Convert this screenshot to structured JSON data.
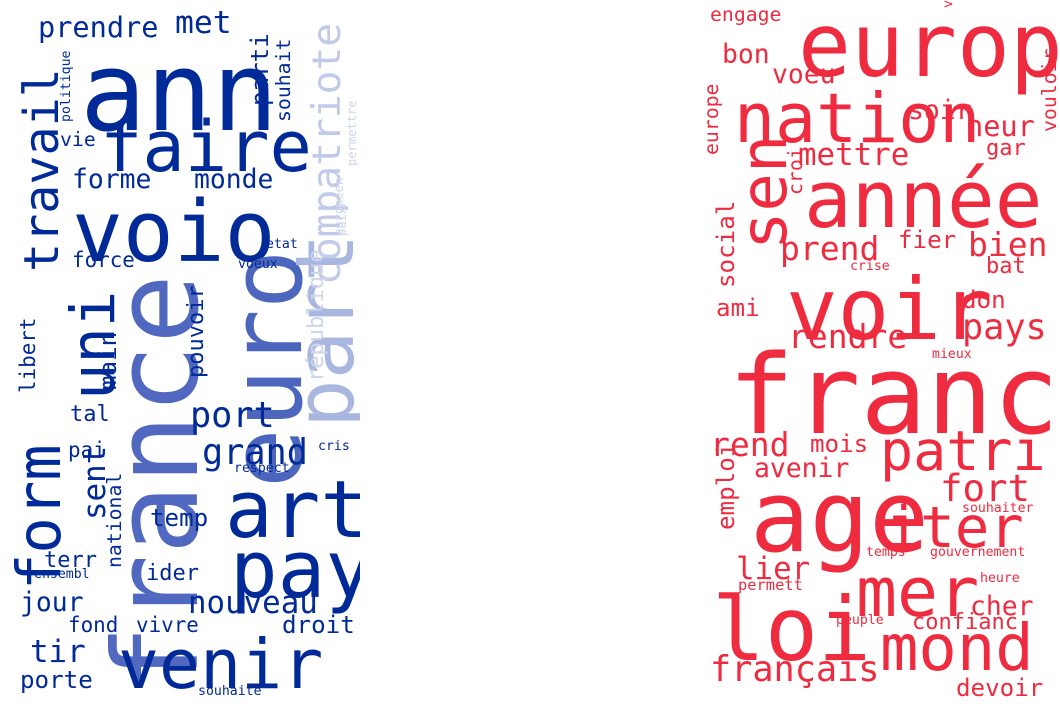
{
  "chart_data": [
    {
      "type": "wordcloud",
      "color_scale": [
        "#002a97",
        "#cdd5ec"
      ],
      "words": [
        {
          "text": "ann",
          "weight": 95,
          "color": "#002a97"
        },
        {
          "text": "faire",
          "weight": 64,
          "color": "#002a97"
        },
        {
          "text": "voio",
          "weight": 80,
          "color": "#002a97"
        },
        {
          "text": "france",
          "weight": 100,
          "color": "#5168c0"
        },
        {
          "text": "euro",
          "weight": 90,
          "color": "#4c66bd"
        },
        {
          "text": "part",
          "weight": 70,
          "color": "#a9b6df"
        },
        {
          "text": "art",
          "weight": 72,
          "color": "#002a97"
        },
        {
          "text": "pay",
          "weight": 72,
          "color": "#002a97"
        },
        {
          "text": "venir",
          "weight": 62,
          "color": "#002a97"
        },
        {
          "text": "form",
          "weight": 55,
          "color": "#002a97"
        },
        {
          "text": "uni",
          "weight": 55,
          "color": "#002a97"
        },
        {
          "text": "travail",
          "weight": 44,
          "color": "#002a97"
        },
        {
          "text": "compatriote",
          "weight": 36,
          "color": "#c1cae9"
        },
        {
          "text": "prendre",
          "weight": 26,
          "color": "#002a97"
        },
        {
          "text": "met",
          "weight": 30,
          "color": "#002a97"
        },
        {
          "text": "parti",
          "weight": 22,
          "color": "#002a97"
        },
        {
          "text": "souhait",
          "weight": 18,
          "color": "#002a97"
        },
        {
          "text": "politique",
          "weight": 12,
          "color": "#002a97"
        },
        {
          "text": "vie",
          "weight": 18,
          "color": "#002a97"
        },
        {
          "text": "forme",
          "weight": 24,
          "color": "#002a97"
        },
        {
          "text": "monde",
          "weight": 24,
          "color": "#002a97"
        },
        {
          "text": "européen",
          "weight": 11,
          "color": "#cdd5ec"
        },
        {
          "text": "permettre",
          "weight": 11,
          "color": "#cdd5ec"
        },
        {
          "text": "paix",
          "weight": 11,
          "color": "#cdd5ec"
        },
        {
          "text": "république",
          "weight": 20,
          "color": "#cdd5ec"
        },
        {
          "text": "etat",
          "weight": 12,
          "color": "#002a97"
        },
        {
          "text": "voeux",
          "weight": 12,
          "color": "#002a97"
        },
        {
          "text": "force",
          "weight": 19,
          "color": "#002a97"
        },
        {
          "text": "main",
          "weight": 22,
          "color": "#002a97"
        },
        {
          "text": "libert",
          "weight": 19,
          "color": "#002a97"
        },
        {
          "text": "pouvoir",
          "weight": 20,
          "color": "#002a97"
        },
        {
          "text": "port",
          "weight": 32,
          "color": "#002a97"
        },
        {
          "text": "tal",
          "weight": 20,
          "color": "#002a97"
        },
        {
          "text": "grand",
          "weight": 32,
          "color": "#002a97"
        },
        {
          "text": "sent",
          "weight": 28,
          "color": "#002a97"
        },
        {
          "text": "pai",
          "weight": 19,
          "color": "#002a97"
        },
        {
          "text": "cris",
          "weight": 12,
          "color": "#002a97"
        },
        {
          "text": "respect",
          "weight": 12,
          "color": "#002a97"
        },
        {
          "text": "national",
          "weight": 18,
          "color": "#002a97"
        },
        {
          "text": "terr",
          "weight": 20,
          "color": "#002a97"
        },
        {
          "text": "temp",
          "weight": 22,
          "color": "#002a97"
        },
        {
          "text": "ensembl",
          "weight": 12,
          "color": "#002a97"
        },
        {
          "text": "ider",
          "weight": 20,
          "color": "#002a97"
        },
        {
          "text": "jour",
          "weight": 24,
          "color": "#002a97"
        },
        {
          "text": "nouveau",
          "weight": 28,
          "color": "#002a97"
        },
        {
          "text": "droit",
          "weight": 22,
          "color": "#002a97"
        },
        {
          "text": "fond",
          "weight": 19,
          "color": "#002a97"
        },
        {
          "text": "vivre",
          "weight": 19,
          "color": "#002a97"
        },
        {
          "text": "tir",
          "weight": 28,
          "color": "#002a97"
        },
        {
          "text": "porte",
          "weight": 22,
          "color": "#002a97"
        },
        {
          "text": "souhaite",
          "weight": 12,
          "color": "#002a97"
        }
      ]
    },
    {
      "type": "wordcloud",
      "color": "#ef2b3f",
      "words": [
        {
          "text": "engage",
          "weight": 18
        },
        {
          "text": "europ",
          "weight": 80
        },
        {
          "text": "bon",
          "weight": 24
        },
        {
          "text": "voeu",
          "weight": 24
        },
        {
          "text": "volonté",
          "weight": 12
        },
        {
          "text": "vouloir",
          "weight": 18
        },
        {
          "text": "nation",
          "weight": 62
        },
        {
          "text": "europe",
          "weight": 18
        },
        {
          "text": "soir",
          "weight": 24
        },
        {
          "text": "heur",
          "weight": 26
        },
        {
          "text": "sen",
          "weight": 58
        },
        {
          "text": "croi",
          "weight": 18
        },
        {
          "text": "mettre",
          "weight": 28
        },
        {
          "text": "gar",
          "weight": 20
        },
        {
          "text": "année",
          "weight": 72
        },
        {
          "text": "social",
          "weight": 22
        },
        {
          "text": "prend",
          "weight": 30
        },
        {
          "text": "fier",
          "weight": 22
        },
        {
          "text": "bien",
          "weight": 30
        },
        {
          "text": "crise",
          "weight": 12
        },
        {
          "text": "bat",
          "weight": 20
        },
        {
          "text": "voir",
          "weight": 78
        },
        {
          "text": "don",
          "weight": 22
        },
        {
          "text": "ami",
          "weight": 22
        },
        {
          "text": "pays",
          "weight": 32
        },
        {
          "text": "rendre",
          "weight": 30
        },
        {
          "text": "mieux",
          "weight": 12
        },
        {
          "text": "franc",
          "weight": 100
        },
        {
          "text": "rend",
          "weight": 30
        },
        {
          "text": "mois",
          "weight": 22
        },
        {
          "text": "patri",
          "weight": 50
        },
        {
          "text": "emploi",
          "weight": 22
        },
        {
          "text": "avenir",
          "weight": 24
        },
        {
          "text": "age",
          "weight": 90
        },
        {
          "text": "fort",
          "weight": 34
        },
        {
          "text": "iter",
          "weight": 52
        },
        {
          "text": "souhaiter",
          "weight": 12
        },
        {
          "text": "temps",
          "weight": 12
        },
        {
          "text": "gouvernement",
          "weight": 12
        },
        {
          "text": "lier",
          "weight": 28
        },
        {
          "text": "mer",
          "weight": 62
        },
        {
          "text": "permett",
          "weight": 14
        },
        {
          "text": "heure",
          "weight": 12
        },
        {
          "text": "cher",
          "weight": 24
        },
        {
          "text": "loi",
          "weight": 80
        },
        {
          "text": "peuple",
          "weight": 12
        },
        {
          "text": "confianc",
          "weight": 20
        },
        {
          "text": "mond",
          "weight": 58
        },
        {
          "text": "français",
          "weight": 32
        },
        {
          "text": "devoir",
          "weight": 22
        }
      ]
    }
  ]
}
